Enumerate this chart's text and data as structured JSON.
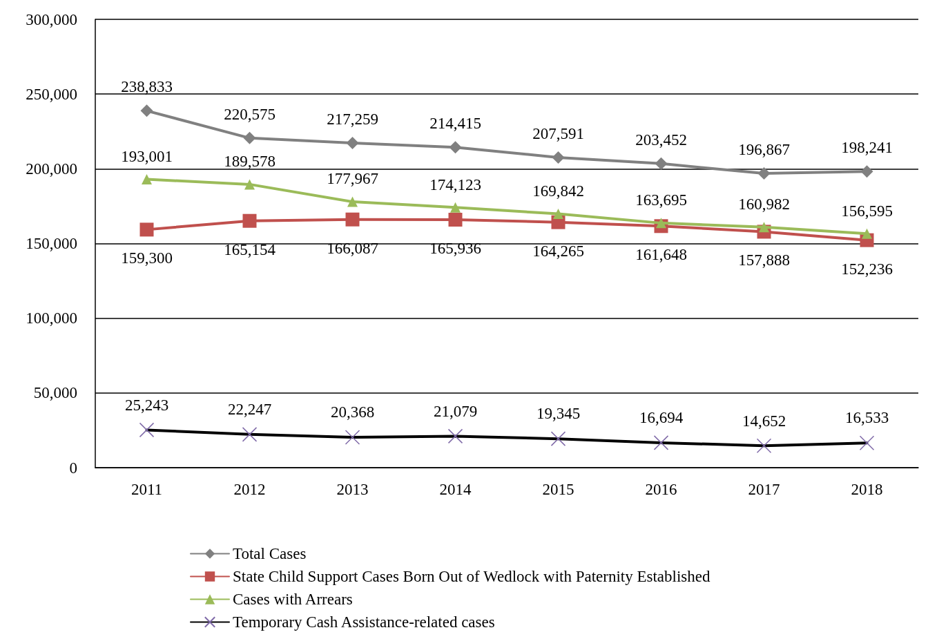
{
  "chart_data": {
    "type": "line",
    "categories": [
      "2011",
      "2012",
      "2013",
      "2014",
      "2015",
      "2016",
      "2017",
      "2018"
    ],
    "series": [
      {
        "name": "Total Cases",
        "color": "#808080",
        "marker": "diamond",
        "values": [
          238833,
          220575,
          217259,
          214415,
          207591,
          203452,
          196867,
          198241
        ],
        "value_labels": [
          "238,833",
          "220,575",
          "217,259",
          "214,415",
          "207,591",
          "203,452",
          "196,867",
          "198,241"
        ]
      },
      {
        "name": "State Child Support Cases Born Out of Wedlock with Paternity Established",
        "color": "#c0504d",
        "marker": "square",
        "values": [
          159300,
          165154,
          166087,
          165936,
          164265,
          161648,
          157888,
          152236
        ],
        "value_labels": [
          "159,300",
          "165,154",
          "166,087",
          "165,936",
          "164,265",
          "161,648",
          "157,888",
          "152,236"
        ]
      },
      {
        "name": "Cases with Arrears",
        "color": "#9bbb59",
        "marker": "triangle",
        "values": [
          193001,
          189578,
          177967,
          174123,
          169842,
          163695,
          160982,
          156595
        ],
        "value_labels": [
          "193,001",
          "189,578",
          "177,967",
          "174,123",
          "169,842",
          "163,695",
          "160,982",
          "156,595"
        ]
      },
      {
        "name": "Temporary Cash Assistance-related cases",
        "color": "#000000",
        "marker": "cross",
        "values": [
          25243,
          22247,
          20368,
          21079,
          19345,
          16694,
          14652,
          16533
        ],
        "value_labels": [
          "25,243",
          "22,247",
          "20,368",
          "21,079",
          "19,345",
          "16,694",
          "14,652",
          "16,533"
        ]
      }
    ],
    "ylim": [
      0,
      300000
    ],
    "yticks": [
      0,
      {
        "value": 50000,
        "label": "50,000"
      },
      {
        "value": 100000,
        "label": "100,000"
      },
      {
        "value": 150000,
        "label": "150,000"
      },
      {
        "value": 200000,
        "label": "200,000"
      },
      {
        "value": 250000,
        "label": "250,000"
      },
      {
        "value": 300000,
        "label": "300,000"
      }
    ],
    "grid": "y",
    "legend": "bottom",
    "line_style": "solid"
  }
}
